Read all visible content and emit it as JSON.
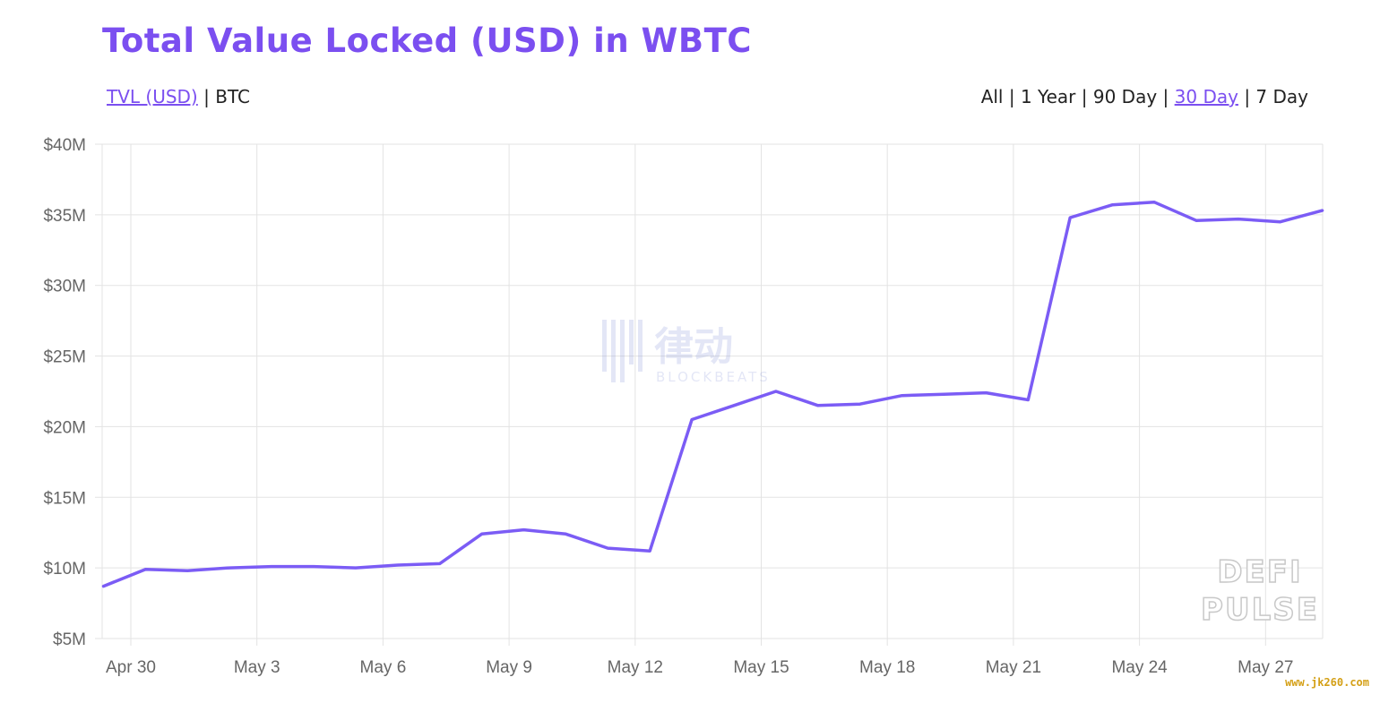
{
  "header": {
    "title": "Total Value Locked (USD) in WBTC"
  },
  "unit_toggle": {
    "active": "TVL (USD)",
    "separator": "|",
    "inactive": "BTC"
  },
  "range_toggle": {
    "all": "All",
    "year": "1 Year",
    "ninety": "90 Day",
    "thirty": "30 Day",
    "seven": "7 Day",
    "separator": "|",
    "selected": "30 Day"
  },
  "watermarks": {
    "blockbeats_cn": "律动",
    "blockbeats_en": "BLOCKBEATS",
    "defi_line1": "DEFI",
    "defi_line2": "PULSE"
  },
  "site_mark": "www.jk260.com",
  "colors": {
    "accent": "#7b4ff0",
    "line": "#7b5cf5"
  },
  "chart_data": {
    "type": "line",
    "title": "Total Value Locked (USD) in WBTC",
    "xlabel": "",
    "ylabel": "",
    "x_ticks": [
      "Apr 30",
      "May 3",
      "May 6",
      "May 9",
      "May 12",
      "May 15",
      "May 18",
      "May 21",
      "May 24",
      "May 27"
    ],
    "y_ticks": [
      "$5M",
      "$10M",
      "$15M",
      "$20M",
      "$25M",
      "$30M",
      "$35M",
      "$40M"
    ],
    "ylim": [
      5,
      40
    ],
    "y_unit": "$M",
    "grid": true,
    "series": [
      {
        "x": [
          -0.65,
          0.35,
          1.35,
          2.35,
          3.35,
          4.35,
          5.35,
          6.35,
          7.35,
          8.35,
          9.35,
          10.35,
          11.35,
          12.35,
          13.35,
          14.35,
          15.35,
          16.35,
          17.35,
          18.35,
          19.35,
          20.35,
          21.35,
          22.35,
          23.35,
          24.35,
          25.35,
          26.35,
          27.35,
          28.35
        ],
        "values": [
          8.7,
          9.9,
          9.8,
          10.0,
          10.1,
          10.1,
          10.0,
          10.2,
          10.3,
          12.4,
          12.7,
          12.4,
          11.4,
          11.2,
          20.5,
          21.5,
          22.5,
          21.5,
          21.6,
          22.2,
          22.3,
          22.4,
          21.9,
          34.8,
          35.7,
          35.9,
          34.6,
          34.7,
          34.5,
          35.3
        ]
      }
    ]
  }
}
